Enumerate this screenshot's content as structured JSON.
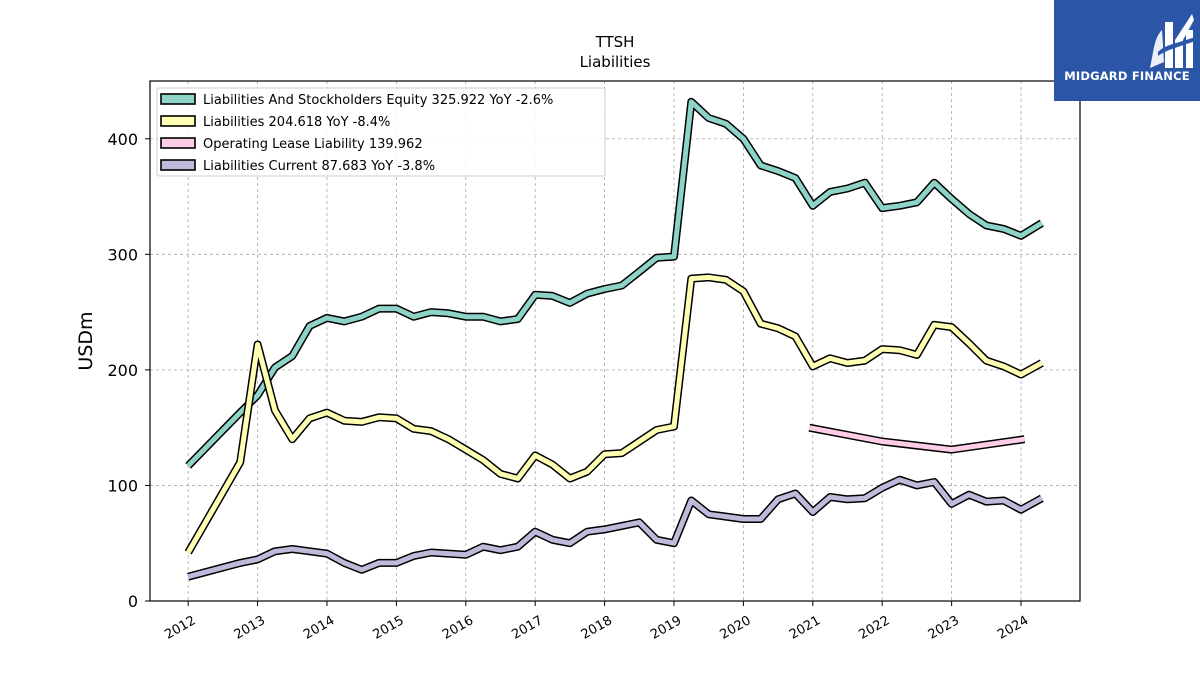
{
  "chart_data": {
    "type": "line",
    "title": "TTSH",
    "subtitle": "Liabilities",
    "ylabel": "USDm",
    "xlabel": "",
    "xlim": [
      2011.45,
      2024.85
    ],
    "ylim": [
      0,
      450
    ],
    "yticks": [
      0,
      100,
      200,
      300,
      400
    ],
    "xticks": [
      2012,
      2013,
      2014,
      2015,
      2016,
      2017,
      2018,
      2019,
      2020,
      2021,
      2022,
      2023,
      2024
    ],
    "grid": true,
    "legend_position": "top-left",
    "series": [
      {
        "name": "Liabilities And Stockholders Equity  325.922 YoY -2.6%",
        "color": "#8dd3c7",
        "points": [
          [
            2012.0,
            117
          ],
          [
            2012.75,
            163
          ],
          [
            2013.0,
            178
          ],
          [
            2013.25,
            202
          ],
          [
            2013.5,
            212
          ],
          [
            2013.75,
            238
          ],
          [
            2014.0,
            245
          ],
          [
            2014.25,
            242
          ],
          [
            2014.5,
            246
          ],
          [
            2014.75,
            253
          ],
          [
            2015.0,
            253
          ],
          [
            2015.25,
            246
          ],
          [
            2015.5,
            250
          ],
          [
            2015.75,
            249
          ],
          [
            2016.0,
            246
          ],
          [
            2016.25,
            246
          ],
          [
            2016.5,
            242
          ],
          [
            2016.75,
            244
          ],
          [
            2017.0,
            265
          ],
          [
            2017.25,
            264
          ],
          [
            2017.5,
            258
          ],
          [
            2017.75,
            266
          ],
          [
            2018.0,
            270
          ],
          [
            2018.25,
            273
          ],
          [
            2018.5,
            285
          ],
          [
            2018.75,
            297
          ],
          [
            2019.0,
            298
          ],
          [
            2019.25,
            432
          ],
          [
            2019.5,
            418
          ],
          [
            2019.75,
            413
          ],
          [
            2020.0,
            400
          ],
          [
            2020.25,
            377
          ],
          [
            2020.5,
            372
          ],
          [
            2020.75,
            366
          ],
          [
            2021.0,
            342
          ],
          [
            2021.25,
            354
          ],
          [
            2021.5,
            357
          ],
          [
            2021.75,
            362
          ],
          [
            2022.0,
            340
          ],
          [
            2022.25,
            342
          ],
          [
            2022.5,
            345
          ],
          [
            2022.75,
            362
          ],
          [
            2023.0,
            348
          ],
          [
            2023.25,
            335
          ],
          [
            2023.5,
            325
          ],
          [
            2023.75,
            322
          ],
          [
            2024.0,
            316
          ],
          [
            2024.3,
            327
          ]
        ]
      },
      {
        "name": "Liabilities  204.618 YoY -8.4%",
        "color": "#ffffb3",
        "points": [
          [
            2012.0,
            42
          ],
          [
            2012.75,
            120
          ],
          [
            2013.0,
            222
          ],
          [
            2013.25,
            165
          ],
          [
            2013.5,
            140
          ],
          [
            2013.75,
            158
          ],
          [
            2014.0,
            163
          ],
          [
            2014.25,
            156
          ],
          [
            2014.5,
            155
          ],
          [
            2014.75,
            159
          ],
          [
            2015.0,
            158
          ],
          [
            2015.25,
            149
          ],
          [
            2015.5,
            147
          ],
          [
            2015.75,
            140
          ],
          [
            2016.0,
            131
          ],
          [
            2016.25,
            122
          ],
          [
            2016.5,
            110
          ],
          [
            2016.75,
            106
          ],
          [
            2017.0,
            126
          ],
          [
            2017.25,
            118
          ],
          [
            2017.5,
            106
          ],
          [
            2017.75,
            112
          ],
          [
            2018.0,
            127
          ],
          [
            2018.25,
            128
          ],
          [
            2018.5,
            138
          ],
          [
            2018.75,
            148
          ],
          [
            2019.0,
            151
          ],
          [
            2019.25,
            279
          ],
          [
            2019.5,
            280
          ],
          [
            2019.75,
            278
          ],
          [
            2020.0,
            268
          ],
          [
            2020.25,
            240
          ],
          [
            2020.5,
            236
          ],
          [
            2020.75,
            229
          ],
          [
            2021.0,
            203
          ],
          [
            2021.25,
            210
          ],
          [
            2021.5,
            206
          ],
          [
            2021.75,
            208
          ],
          [
            2022.0,
            218
          ],
          [
            2022.25,
            217
          ],
          [
            2022.5,
            213
          ],
          [
            2022.75,
            239
          ],
          [
            2023.0,
            237
          ],
          [
            2023.25,
            223
          ],
          [
            2023.5,
            208
          ],
          [
            2023.75,
            203
          ],
          [
            2024.0,
            196
          ],
          [
            2024.3,
            206
          ]
        ]
      },
      {
        "name": "Operating Lease Liability  139.962",
        "color": "#fccde5",
        "points": [
          [
            2020.95,
            150
          ],
          [
            2022.0,
            138
          ],
          [
            2023.0,
            131
          ],
          [
            2024.05,
            140
          ]
        ]
      },
      {
        "name": "Liabilities Current  87.683 YoY -3.8%",
        "color": "#bebada",
        "points": [
          [
            2012.0,
            21
          ],
          [
            2012.75,
            33
          ],
          [
            2013.0,
            36
          ],
          [
            2013.25,
            43
          ],
          [
            2013.5,
            45
          ],
          [
            2013.75,
            43
          ],
          [
            2014.0,
            41
          ],
          [
            2014.25,
            33
          ],
          [
            2014.5,
            27
          ],
          [
            2014.75,
            33
          ],
          [
            2015.0,
            33
          ],
          [
            2015.25,
            39
          ],
          [
            2015.5,
            42
          ],
          [
            2015.75,
            41
          ],
          [
            2016.0,
            40
          ],
          [
            2016.25,
            47
          ],
          [
            2016.5,
            44
          ],
          [
            2016.75,
            47
          ],
          [
            2017.0,
            60
          ],
          [
            2017.25,
            53
          ],
          [
            2017.5,
            50
          ],
          [
            2017.75,
            60
          ],
          [
            2018.0,
            62
          ],
          [
            2018.25,
            65
          ],
          [
            2018.5,
            68
          ],
          [
            2018.75,
            53
          ],
          [
            2019.0,
            50
          ],
          [
            2019.25,
            87
          ],
          [
            2019.5,
            75
          ],
          [
            2019.75,
            73
          ],
          [
            2020.0,
            71
          ],
          [
            2020.25,
            71
          ],
          [
            2020.5,
            88
          ],
          [
            2020.75,
            93
          ],
          [
            2021.0,
            77
          ],
          [
            2021.25,
            90
          ],
          [
            2021.5,
            88
          ],
          [
            2021.75,
            89
          ],
          [
            2022.0,
            98
          ],
          [
            2022.25,
            105
          ],
          [
            2022.5,
            100
          ],
          [
            2022.75,
            103
          ],
          [
            2023.0,
            84
          ],
          [
            2023.25,
            92
          ],
          [
            2023.5,
            86
          ],
          [
            2023.75,
            87
          ],
          [
            2024.0,
            79
          ],
          [
            2024.3,
            89
          ]
        ]
      }
    ]
  },
  "brand": {
    "name": "MIDGARD FINANCE",
    "bg_color": "#2b56a7"
  }
}
